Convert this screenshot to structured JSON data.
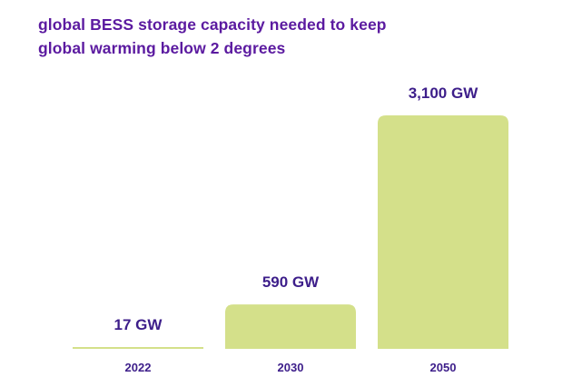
{
  "chart_data": {
    "type": "bar",
    "title": "global BESS storage capacity needed to keep global warming below 2 degrees",
    "categories": [
      "2022",
      "2030",
      "2050"
    ],
    "values": [
      17,
      590,
      3100
    ],
    "data_labels": [
      "17 GW",
      "590 GW",
      "3,100 GW"
    ],
    "unit": "GW",
    "ylim": [
      0,
      3100
    ],
    "grid": false,
    "bar_color": "#d4e08a",
    "text_color": "#3d1e8a",
    "title_color": "#5b1aa0"
  }
}
